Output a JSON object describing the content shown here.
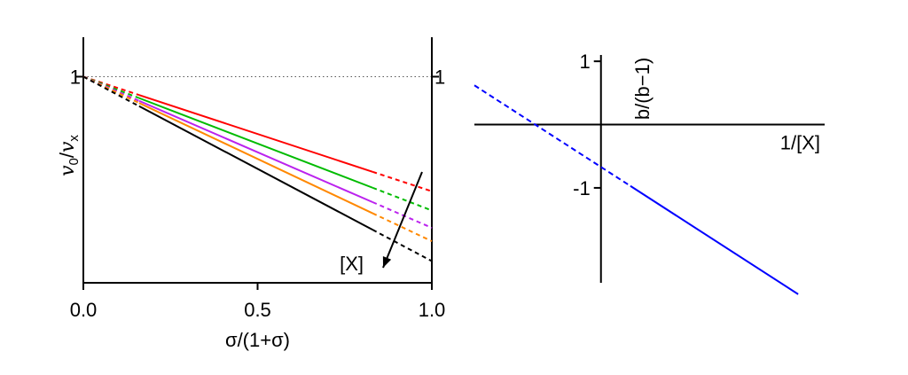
{
  "chart_data": [
    {
      "type": "line",
      "xlabel": "σ/(1+σ)",
      "ylabel": {
        "main": "v",
        "sub0": "0",
        "slash": "/",
        "main2": "v",
        "sub1": "x"
      },
      "xticks": [
        "0.0",
        "0.5",
        "1.0"
      ],
      "yticks_left": [
        "1"
      ],
      "yticks_right": [
        "1"
      ],
      "xlim": [
        0,
        1
      ],
      "ylim": [
        0.43,
        1.06
      ],
      "annotation": "[X]",
      "reference_line": {
        "y": 1,
        "style": "dotted"
      },
      "solid_range": [
        0.16,
        0.83
      ],
      "series": [
        {
          "color": "#ff0000",
          "start": 1,
          "end": 0.683
        },
        {
          "color": "#00bb00",
          "start": 1,
          "end": 0.63
        },
        {
          "color": "#bb22ee",
          "start": 1,
          "end": 0.582
        },
        {
          "color": "#ff8800",
          "start": 1,
          "end": 0.545
        },
        {
          "color": "#000000",
          "start": 1,
          "end": 0.49
        }
      ]
    },
    {
      "type": "line",
      "xlabel": "1/[X]",
      "ylabel": "b/(b−1)",
      "ylabel_color": "#0000ff",
      "yticks": [
        "1",
        "-1"
      ],
      "ylim": [
        -2.5,
        1.1
      ],
      "xlim": [
        -2.15,
        3.8
      ],
      "series": [
        {
          "color": "#0000ff",
          "slope": -0.6,
          "intercept": -0.67,
          "x_start": -2.15,
          "x_dash_end": 0.5,
          "x_end": 3.35
        }
      ]
    }
  ]
}
